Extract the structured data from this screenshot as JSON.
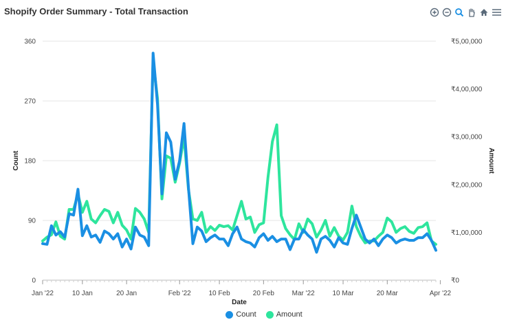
{
  "header": {
    "title": "Shopify Order Summary - Total Transaction"
  },
  "toolbar": {
    "icons": [
      "zoom-in-icon",
      "zoom-out-icon",
      "zoom-selection-icon",
      "pan-hand-icon",
      "home-reset-icon",
      "menu-icon"
    ]
  },
  "colors": {
    "count": "#1a8fe3",
    "amount": "#2ee59d"
  },
  "chart_data": {
    "type": "line",
    "xlabel": "Date",
    "ylabel_left": "Count",
    "ylabel_right": "Amount",
    "ylim_left": [
      0,
      360
    ],
    "ylim_right": [
      0,
      500000
    ],
    "left_ticks": [
      "0",
      "90",
      "180",
      "270",
      "360"
    ],
    "left_tick_values": [
      0,
      90,
      180,
      270,
      360
    ],
    "right_ticks": [
      "₹0",
      "₹1,00,000",
      "₹2,00,000",
      "₹3,00,000",
      "₹4,00,000",
      "₹5,00,000"
    ],
    "right_tick_values": [
      0,
      100000,
      200000,
      300000,
      400000,
      500000
    ],
    "x_ticks": [
      "Jan '22",
      "10 Jan",
      "20 Jan",
      "Feb '22",
      "10 Feb",
      "20 Feb",
      "Mar '22",
      "10 Mar",
      "20 Mar",
      "Apr '22"
    ],
    "x_tick_days": [
      0,
      9,
      19,
      31,
      40,
      50,
      59,
      68,
      78,
      90
    ],
    "grid": true,
    "legend_position": "bottom-center",
    "series": [
      {
        "name": "Count",
        "axis": "left",
        "values": [
          55,
          54,
          82,
          68,
          73,
          65,
          100,
          98,
          137,
          67,
          82,
          65,
          68,
          57,
          74,
          70,
          62,
          70,
          50,
          62,
          47,
          80,
          68,
          65,
          52,
          342,
          265,
          130,
          222,
          208,
          152,
          180,
          236,
          140,
          55,
          80,
          74,
          58,
          64,
          68,
          62,
          62,
          52,
          70,
          80,
          62,
          58,
          56,
          50,
          64,
          70,
          60,
          66,
          58,
          62,
          62,
          46,
          62,
          62,
          76,
          68,
          62,
          42,
          62,
          66,
          60,
          50,
          64,
          56,
          54,
          78,
          98,
          80,
          62,
          56,
          62,
          52,
          62,
          68,
          64,
          56,
          60,
          62,
          60,
          60,
          64,
          64,
          70,
          60,
          45
        ]
      },
      {
        "name": "Amount",
        "axis": "right",
        "values": [
          82000,
          90000,
          95000,
          122000,
          92000,
          86000,
          148000,
          148000,
          180000,
          142000,
          165000,
          128000,
          120000,
          135000,
          148000,
          144000,
          120000,
          142000,
          115000,
          105000,
          86000,
          150000,
          142000,
          128000,
          100000,
          460000,
          380000,
          170000,
          260000,
          255000,
          205000,
          245000,
          300000,
          190000,
          128000,
          125000,
          142000,
          100000,
          112000,
          104000,
          115000,
          112000,
          114000,
          105000,
          135000,
          165000,
          128000,
          132000,
          100000,
          116000,
          120000,
          215000,
          290000,
          325000,
          135000,
          108000,
          95000,
          85000,
          118000,
          100000,
          128000,
          118000,
          90000,
          105000,
          125000,
          92000,
          110000,
          92000,
          84000,
          100000,
          155000,
          112000,
          92000,
          78000,
          82000,
          82000,
          92000,
          100000,
          130000,
          122000,
          100000,
          108000,
          112000,
          102000,
          98000,
          110000,
          112000,
          120000,
          82000,
          75000
        ]
      }
    ]
  },
  "legend": {
    "count_label": "Count",
    "amount_label": "Amount"
  }
}
